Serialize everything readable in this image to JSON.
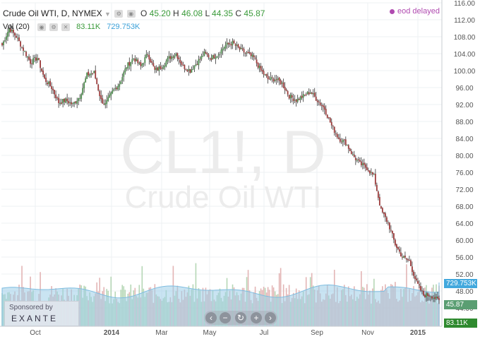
{
  "header": {
    "symbol": "Crude Oil WTI, D, NYMEX",
    "ohlc": [
      {
        "label": "O",
        "value": "45.20"
      },
      {
        "label": "H",
        "value": "46.08"
      },
      {
        "label": "L",
        "value": "44.35"
      },
      {
        "label": "C",
        "value": "45.87"
      }
    ],
    "volume_label": "Vol (20)",
    "volume_value": "83.11K",
    "volume_ma": "729.753K",
    "status": "eod delayed"
  },
  "watermark": {
    "symbol": "CL1!, D",
    "name": "Crude Oil WTI"
  },
  "sponsor": {
    "label": "Sponsored by",
    "brand": "EXANTE"
  },
  "price_badges": {
    "ma": "729.753K",
    "last": "45.87",
    "volume": "83.11K"
  },
  "colors": {
    "up": "#4d8c4d",
    "down": "#9c3b3b",
    "vol_up": "#b6d7b6",
    "vol_down": "#e3b5b5",
    "vol_ma_area": "#9ccde8",
    "badge_ma": "#42a8dd",
    "badge_last": "#5a9e72",
    "badge_vol": "#2f8a2f",
    "status": "#b04bb0"
  },
  "navigation": [
    "zoom-out",
    "scroll-left",
    "reset",
    "zoom-in",
    "scroll-right"
  ],
  "chart_data": {
    "type": "candlestick",
    "title": "Crude Oil WTI, D, NYMEX",
    "x_ticks": [
      "Oct",
      "2014",
      "Mar",
      "May",
      "Jul",
      "Sep",
      "Nov",
      "2015"
    ],
    "y_ticks": [
      116,
      112,
      108,
      104,
      100,
      96,
      92,
      88,
      84,
      80,
      76,
      72,
      68,
      64,
      60,
      56,
      52,
      48,
      44
    ],
    "ylim": [
      42,
      116
    ],
    "close_anchors": [
      [
        0,
        106
      ],
      [
        5,
        110
      ],
      [
        10,
        108
      ],
      [
        15,
        105
      ],
      [
        20,
        102
      ],
      [
        25,
        103
      ],
      [
        30,
        98
      ],
      [
        35,
        96
      ],
      [
        40,
        92.5
      ],
      [
        45,
        93
      ],
      [
        50,
        92
      ],
      [
        55,
        94
      ],
      [
        60,
        99
      ],
      [
        65,
        99.5
      ],
      [
        70,
        93
      ],
      [
        73,
        92
      ],
      [
        78,
        95
      ],
      [
        83,
        97
      ],
      [
        88,
        101
      ],
      [
        93,
        103
      ],
      [
        98,
        101
      ],
      [
        103,
        104
      ],
      [
        108,
        100
      ],
      [
        113,
        101
      ],
      [
        118,
        103
      ],
      [
        123,
        104
      ],
      [
        128,
        101
      ],
      [
        133,
        100
      ],
      [
        138,
        102
      ],
      [
        143,
        104
      ],
      [
        148,
        103
      ],
      [
        153,
        104
      ],
      [
        158,
        106
      ],
      [
        163,
        106.5
      ],
      [
        168,
        105
      ],
      [
        173,
        104
      ],
      [
        178,
        103
      ],
      [
        183,
        100
      ],
      [
        188,
        98
      ],
      [
        193,
        98
      ],
      [
        198,
        97
      ],
      [
        203,
        94
      ],
      [
        208,
        93
      ],
      [
        213,
        94
      ],
      [
        218,
        95
      ],
      [
        223,
        93
      ],
      [
        228,
        91
      ],
      [
        233,
        87
      ],
      [
        238,
        84
      ],
      [
        243,
        83
      ],
      [
        248,
        80
      ],
      [
        253,
        78
      ],
      [
        258,
        77
      ],
      [
        263,
        75
      ],
      [
        268,
        67
      ],
      [
        273,
        64
      ],
      [
        278,
        59
      ],
      [
        283,
        56
      ],
      [
        288,
        55
      ],
      [
        293,
        50
      ],
      [
        298,
        47
      ],
      [
        303,
        47
      ],
      [
        308,
        45.87
      ]
    ],
    "volume_ma_level": 729.753,
    "last_close": 45.87
  }
}
